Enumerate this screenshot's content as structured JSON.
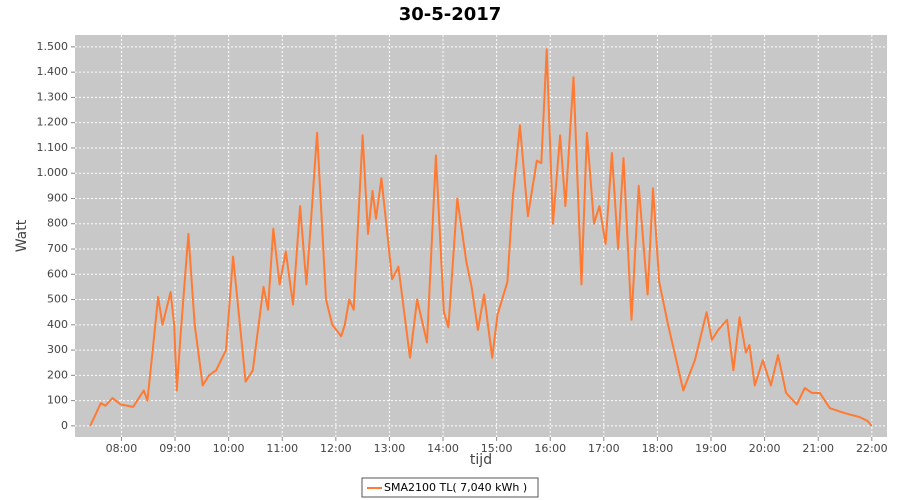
{
  "chart_data": {
    "type": "line",
    "title": "30-5-2017",
    "x_label": "tijd",
    "y_label": "Watt",
    "xlim": [
      "07:08",
      "22:17"
    ],
    "ylim": [
      -44,
      1547
    ],
    "xticks": [
      "08:00",
      "09:00",
      "10:00",
      "11:00",
      "12:00",
      "13:00",
      "14:00",
      "15:00",
      "16:00",
      "17:00",
      "18:00",
      "19:00",
      "20:00",
      "21:00",
      "22:00"
    ],
    "yticks": [
      0,
      100,
      200,
      300,
      400,
      500,
      600,
      700,
      800,
      900,
      {
        "value": 1000,
        "label": "1.000"
      },
      {
        "value": 1100,
        "label": "1.100"
      },
      {
        "value": 1200,
        "label": "1.200"
      },
      {
        "value": 1300,
        "label": "1.300"
      },
      {
        "value": 1400,
        "label": "1.400"
      },
      {
        "value": 1500,
        "label": "1.500"
      }
    ],
    "grid": true,
    "legend": "bottom",
    "x": [
      "07:25",
      "07:37",
      "07:42",
      "07:50",
      "07:59",
      "08:13",
      "08:25",
      "08:29",
      "08:35",
      "08:41",
      "08:46",
      "08:55",
      "08:59",
      "09:02",
      "09:06",
      "09:15",
      "09:22",
      "09:31",
      "09:38",
      "09:46",
      "09:57",
      "10:05",
      "10:19",
      "10:27",
      "10:39",
      "10:44",
      "10:50",
      "10:57",
      "11:04",
      "11:12",
      "11:20",
      "11:27",
      "11:32",
      "11:39",
      "11:49",
      "11:56",
      "12:06",
      "12:10",
      "12:15",
      "12:20",
      "12:30",
      "12:36",
      "12:41",
      "12:45",
      "12:51",
      "12:57",
      "13:03",
      "13:10",
      "13:23",
      "13:31",
      "13:42",
      "13:52",
      "14:01",
      "14:06",
      "14:16",
      "14:26",
      "14:32",
      "14:39",
      "14:46",
      "14:55",
      "15:01",
      "15:12",
      "15:18",
      "15:26",
      "15:35",
      "15:45",
      "15:50",
      "15:56",
      "16:03",
      "16:11",
      "16:17",
      "16:26",
      "16:35",
      "16:41",
      "16:49",
      "16:55",
      "17:02",
      "17:09",
      "17:16",
      "17:22",
      "17:31",
      "17:39",
      "17:49",
      "17:55",
      "18:02",
      "18:12",
      "18:29",
      "18:42",
      "18:55",
      "19:01",
      "19:08",
      "19:18",
      "19:25",
      "19:32",
      "19:39",
      "19:43",
      "19:49",
      "19:58",
      "20:07",
      "20:15",
      "20:24",
      "20:36",
      "20:45",
      "20:53",
      "21:02",
      "21:13",
      "21:30",
      "21:46",
      "21:55",
      "22:00"
    ],
    "series": [
      {
        "name": "SMA2100 TL( 7,040 kWh )",
        "color": "#ff7a33",
        "values": [
          0,
          90,
          80,
          110,
          85,
          75,
          140,
          100,
          300,
          510,
          400,
          530,
          400,
          140,
          350,
          760,
          400,
          160,
          200,
          220,
          300,
          670,
          175,
          220,
          550,
          460,
          780,
          560,
          690,
          480,
          870,
          560,
          800,
          1160,
          500,
          400,
          355,
          400,
          500,
          460,
          1150,
          760,
          930,
          820,
          980,
          780,
          580,
          630,
          270,
          500,
          330,
          1070,
          450,
          390,
          900,
          650,
          550,
          380,
          520,
          270,
          440,
          570,
          900,
          1190,
          830,
          1050,
          1040,
          1490,
          800,
          1150,
          870,
          1380,
          560,
          1160,
          800,
          870,
          720,
          1080,
          700,
          1060,
          420,
          950,
          520,
          940,
          570,
          400,
          140,
          260,
          450,
          340,
          380,
          420,
          220,
          430,
          290,
          320,
          160,
          260,
          160,
          280,
          130,
          85,
          150,
          130,
          130,
          70,
          50,
          35,
          20,
          0
        ]
      }
    ]
  }
}
